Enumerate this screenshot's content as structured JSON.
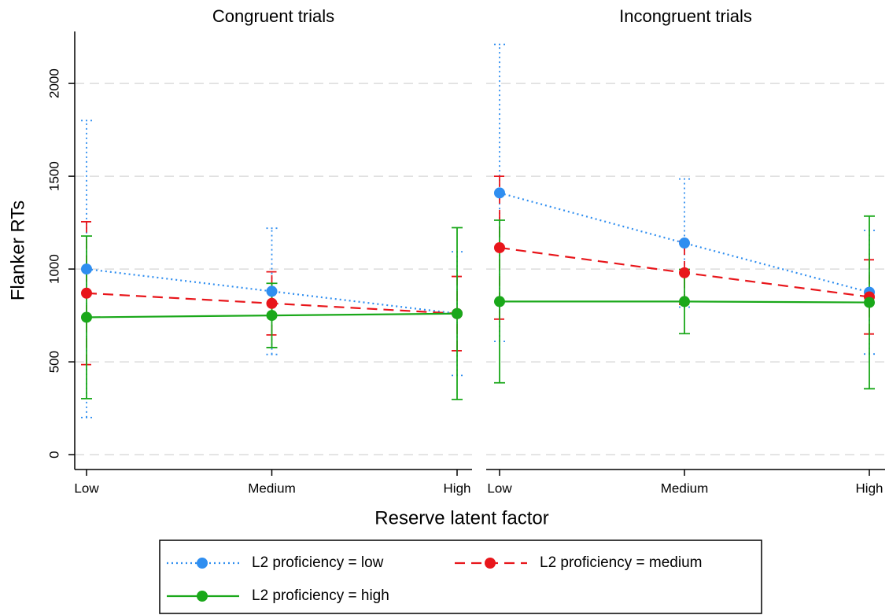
{
  "chart_data": [
    {
      "type": "line",
      "title": "Congruent trials",
      "ylabel": "Flanker RTs",
      "xlabel": "Reserve latent factor",
      "categories": [
        "Low",
        "Medium",
        "High"
      ],
      "ylim": [
        -80,
        2280
      ],
      "yticks": [
        0,
        500,
        1000,
        1500,
        2000
      ],
      "grid": true,
      "series": [
        {
          "name": "L2 proficiency = low",
          "color": "#2f8ef0",
          "dash": "dot",
          "values": [
            1000,
            880,
            760
          ],
          "errors": [
            800,
            340,
            333
          ]
        },
        {
          "name": "L2 proficiency = medium",
          "color": "#e8161b",
          "dash": "dash",
          "values": [
            870,
            815,
            760
          ],
          "errors": [
            385,
            170,
            200
          ]
        },
        {
          "name": "L2 proficiency = high",
          "color": "#1aa81a",
          "dash": "solid",
          "values": [
            740,
            750,
            760
          ],
          "errors": [
            438,
            173,
            463
          ]
        }
      ]
    },
    {
      "type": "line",
      "title": "Incongruent trials",
      "categories": [
        "Low",
        "Medium",
        "High"
      ],
      "ylim": [
        -80,
        2280
      ],
      "grid": true,
      "series": [
        {
          "color": "#2f8ef0",
          "dash": "dot",
          "values": [
            1410,
            1140,
            875
          ],
          "errors": [
            800,
            345,
            333
          ]
        },
        {
          "color": "#e8161b",
          "dash": "dash",
          "values": [
            1115,
            980,
            850
          ],
          "errors": [
            385,
            170,
            200
          ]
        },
        {
          "color": "#1aa81a",
          "dash": "solid",
          "values": [
            825,
            825,
            820
          ],
          "errors": [
            438,
            173,
            465
          ]
        }
      ]
    }
  ]
}
